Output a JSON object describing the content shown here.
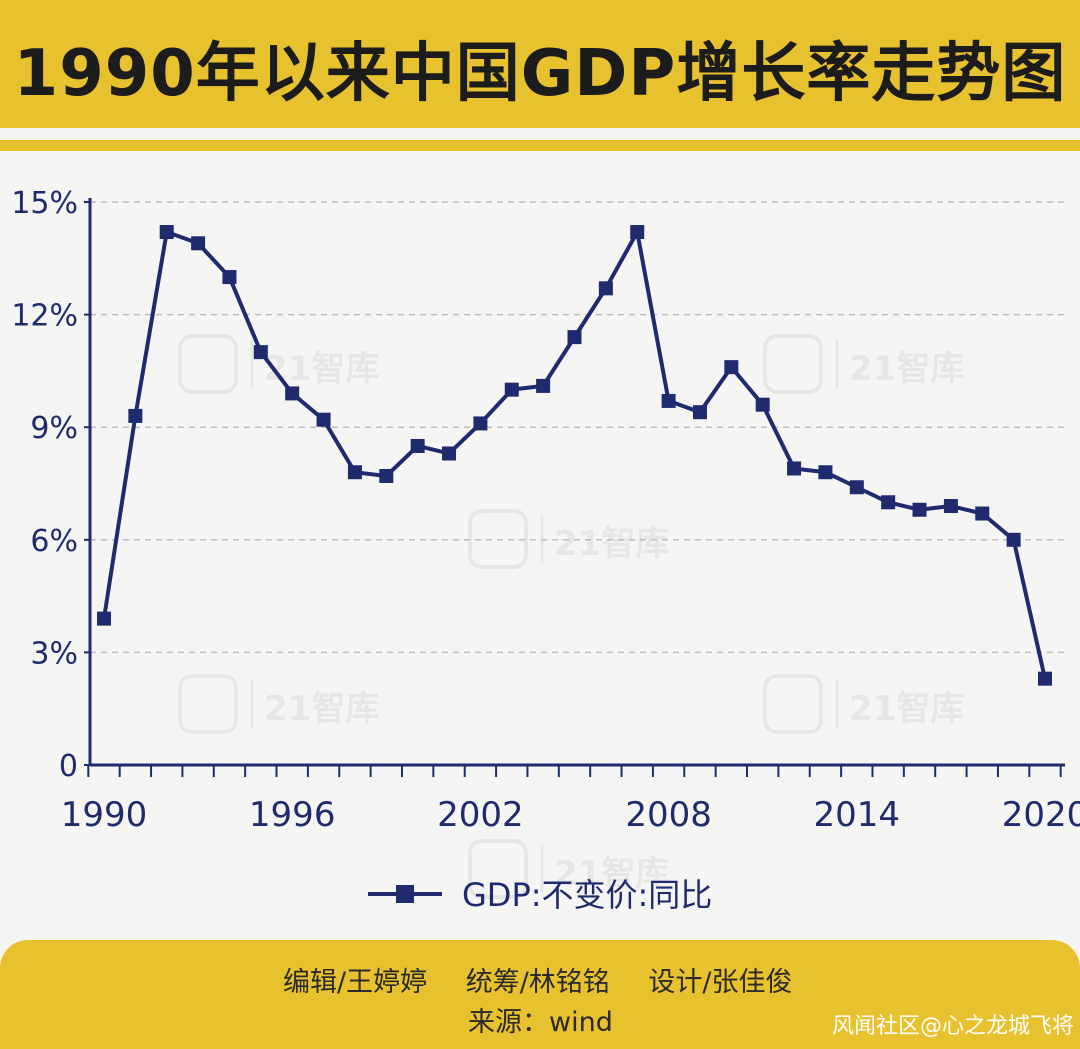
{
  "header": {
    "title": "1990年以来中国GDP增长率走势图"
  },
  "chart_data": {
    "type": "line",
    "title": "1990年以来中国GDP增长率走势图",
    "xlabel": "",
    "ylabel": "",
    "x": [
      1990,
      1991,
      1992,
      1993,
      1994,
      1995,
      1996,
      1997,
      1998,
      1999,
      2000,
      2001,
      2002,
      2003,
      2004,
      2005,
      2006,
      2007,
      2008,
      2009,
      2010,
      2011,
      2012,
      2013,
      2014,
      2015,
      2016,
      2017,
      2018,
      2019,
      2020
    ],
    "series": [
      {
        "name": "GDP:不变价:同比",
        "values": [
          3.9,
          9.3,
          14.2,
          13.9,
          13.0,
          11.0,
          9.9,
          9.2,
          7.8,
          7.7,
          8.5,
          8.3,
          9.1,
          10.0,
          10.1,
          11.4,
          12.7,
          14.2,
          9.7,
          9.4,
          10.6,
          9.6,
          7.9,
          7.8,
          7.4,
          7.0,
          6.8,
          6.9,
          6.7,
          6.0,
          2.3
        ]
      }
    ],
    "xticks": [
      "1990",
      "1996",
      "2002",
      "2008",
      "2014",
      "2020"
    ],
    "yticks": [
      "0",
      "3%",
      "6%",
      "9%",
      "12%",
      "15%"
    ],
    "ylim": [
      0,
      15
    ],
    "grid": true,
    "legend": "bottom-center",
    "color": "#1f2b6e",
    "watermark": "21智库"
  },
  "footer": {
    "editor": "编辑/王婷婷",
    "coordinator": "统筹/林铭铭",
    "designer": "设计/张佳俊",
    "source_label": "来源：",
    "source_value": "wind",
    "watermark": "风闻社区@心之龙城飞将"
  }
}
